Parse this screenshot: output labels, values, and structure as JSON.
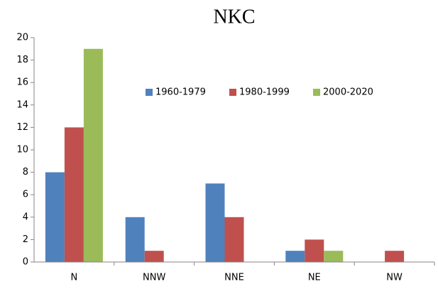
{
  "chart_data": {
    "type": "bar",
    "title": "NKC",
    "categories": [
      "N",
      "NNW",
      "NNE",
      "NE",
      "NW"
    ],
    "series": [
      {
        "name": "1960-1979",
        "color": "#4f81bd",
        "values": [
          8,
          4,
          7,
          1,
          0
        ]
      },
      {
        "name": "1980-1999",
        "color": "#c0504d",
        "values": [
          12,
          1,
          4,
          2,
          1
        ]
      },
      {
        "name": "2000-2020",
        "color": "#9bbb59",
        "values": [
          19,
          0,
          0,
          1,
          0
        ]
      }
    ],
    "ylim": [
      0,
      20
    ],
    "yticks": [
      0,
      2,
      4,
      6,
      8,
      10,
      12,
      14,
      16,
      18,
      20
    ],
    "grid": false,
    "legend": "top-center"
  }
}
